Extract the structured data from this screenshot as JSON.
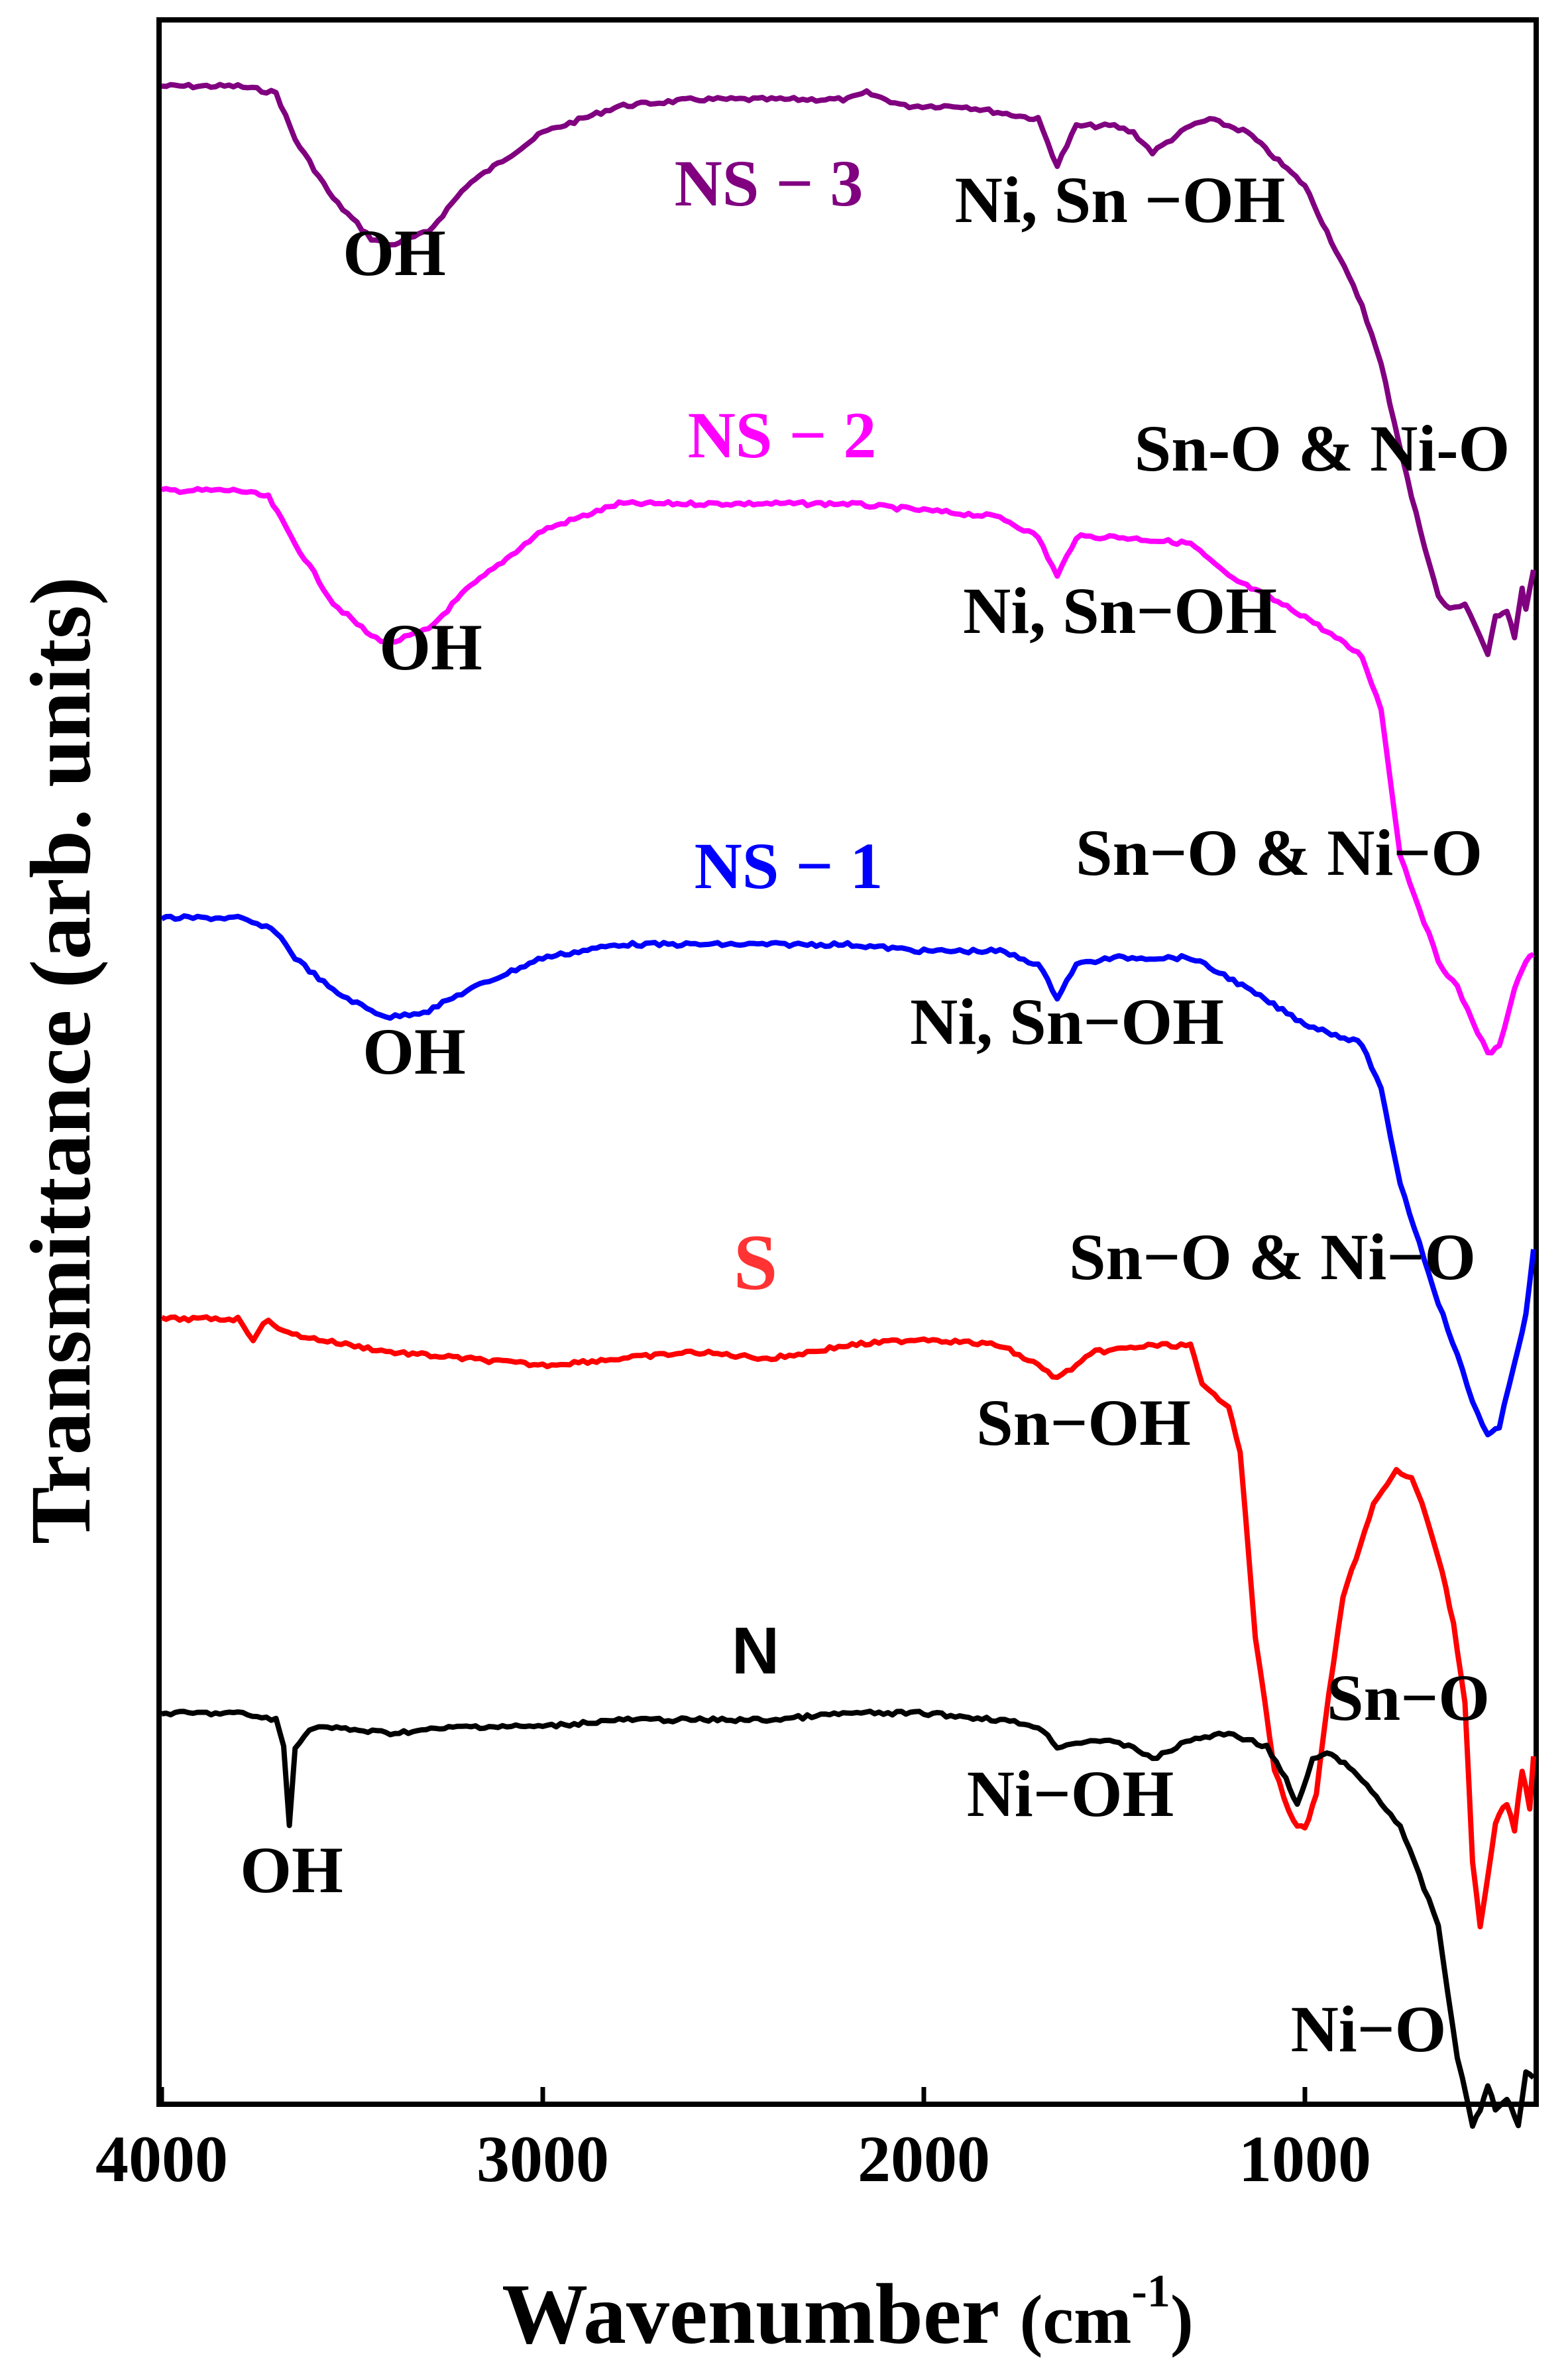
{
  "chart_data": {
    "type": "line",
    "xlabel_main": "Wavenumber ",
    "xlabel_unit_base": "(cm",
    "xlabel_unit_sup": "-1",
    "xlabel_unit_close": ")",
    "ylabel": "Transmittance (arb. units)",
    "xlim": [
      4000,
      400
    ],
    "x_ticks": [
      4000,
      3000,
      2000,
      1000
    ],
    "x_tick_labels": [
      "4000",
      "3000",
      "2000",
      "1000"
    ],
    "y_ticks": false,
    "grid": false,
    "series": [
      {
        "name": "NS − 3",
        "color": "#800080",
        "points": [
          [
            4000,
            0.0
          ],
          [
            3800,
            0.0
          ],
          [
            3700,
            -0.01
          ],
          [
            3650,
            -0.08
          ],
          [
            3550,
            -0.17
          ],
          [
            3450,
            -0.23
          ],
          [
            3400,
            -0.24
          ],
          [
            3300,
            -0.22
          ],
          [
            3200,
            -0.15
          ],
          [
            3000,
            -0.07
          ],
          [
            2800,
            -0.03
          ],
          [
            2600,
            -0.02
          ],
          [
            2400,
            -0.02
          ],
          [
            2200,
            -0.02
          ],
          [
            2150,
            -0.01
          ],
          [
            2050,
            -0.03
          ],
          [
            1900,
            -0.03
          ],
          [
            1700,
            -0.05
          ],
          [
            1650,
            -0.12
          ],
          [
            1600,
            -0.06
          ],
          [
            1500,
            -0.06
          ],
          [
            1450,
            -0.07
          ],
          [
            1400,
            -0.1
          ],
          [
            1300,
            -0.06
          ],
          [
            1250,
            -0.05
          ],
          [
            1150,
            -0.07
          ],
          [
            1000,
            -0.15
          ],
          [
            850,
            -0.33
          ],
          [
            800,
            -0.42
          ],
          [
            720,
            -0.62
          ],
          [
            650,
            -0.77
          ],
          [
            620,
            -0.79
          ],
          [
            580,
            -0.78
          ],
          [
            540,
            -0.83
          ],
          [
            520,
            -0.86
          ],
          [
            500,
            -0.8
          ],
          [
            470,
            -0.79
          ],
          [
            450,
            -0.83
          ],
          [
            430,
            -0.76
          ],
          [
            420,
            -0.79
          ],
          [
            400,
            -0.73
          ]
        ]
      },
      {
        "name": "NS − 2",
        "color": "#ff00ff",
        "points": [
          [
            4000,
            0.0
          ],
          [
            3800,
            0.0
          ],
          [
            3720,
            -0.01
          ],
          [
            3650,
            -0.08
          ],
          [
            3550,
            -0.17
          ],
          [
            3450,
            -0.22
          ],
          [
            3400,
            -0.23
          ],
          [
            3300,
            -0.21
          ],
          [
            3200,
            -0.15
          ],
          [
            3000,
            -0.06
          ],
          [
            2800,
            -0.02
          ],
          [
            2600,
            -0.02
          ],
          [
            2400,
            -0.02
          ],
          [
            2200,
            -0.02
          ],
          [
            2000,
            -0.03
          ],
          [
            1800,
            -0.04
          ],
          [
            1700,
            -0.07
          ],
          [
            1650,
            -0.13
          ],
          [
            1600,
            -0.07
          ],
          [
            1500,
            -0.07
          ],
          [
            1300,
            -0.08
          ],
          [
            1200,
            -0.13
          ],
          [
            1000,
            -0.19
          ],
          [
            850,
            -0.25
          ],
          [
            800,
            -0.33
          ],
          [
            750,
            -0.55
          ],
          [
            650,
            -0.71
          ],
          [
            600,
            -0.75
          ],
          [
            560,
            -0.8
          ],
          [
            520,
            -0.85
          ],
          [
            490,
            -0.84
          ],
          [
            450,
            -0.75
          ],
          [
            420,
            -0.71
          ],
          [
            400,
            -0.7
          ]
        ]
      },
      {
        "name": "NS − 1",
        "color": "#0000ff",
        "points": [
          [
            4000,
            0.0
          ],
          [
            3800,
            0.0
          ],
          [
            3700,
            -0.02
          ],
          [
            3650,
            -0.06
          ],
          [
            3550,
            -0.11
          ],
          [
            3450,
            -0.14
          ],
          [
            3400,
            -0.15
          ],
          [
            3300,
            -0.14
          ],
          [
            3200,
            -0.11
          ],
          [
            3000,
            -0.06
          ],
          [
            2800,
            -0.04
          ],
          [
            2600,
            -0.04
          ],
          [
            2400,
            -0.04
          ],
          [
            2200,
            -0.04
          ],
          [
            2000,
            -0.05
          ],
          [
            1800,
            -0.05
          ],
          [
            1700,
            -0.07
          ],
          [
            1650,
            -0.12
          ],
          [
            1600,
            -0.07
          ],
          [
            1500,
            -0.06
          ],
          [
            1300,
            -0.06
          ],
          [
            1200,
            -0.09
          ],
          [
            1000,
            -0.16
          ],
          [
            850,
            -0.19
          ],
          [
            800,
            -0.26
          ],
          [
            750,
            -0.4
          ],
          [
            650,
            -0.58
          ],
          [
            600,
            -0.66
          ],
          [
            560,
            -0.73
          ],
          [
            520,
            -0.78
          ],
          [
            490,
            -0.77
          ],
          [
            450,
            -0.67
          ],
          [
            420,
            -0.6
          ],
          [
            400,
            -0.5
          ]
        ]
      },
      {
        "name": "S",
        "color": "#ff0000",
        "points": [
          [
            4000,
            0.0
          ],
          [
            3800,
            0.0
          ],
          [
            3760,
            -0.03
          ],
          [
            3720,
            0.0
          ],
          [
            3680,
            -0.02
          ],
          [
            3600,
            -0.03
          ],
          [
            3400,
            -0.05
          ],
          [
            3200,
            -0.06
          ],
          [
            3000,
            -0.07
          ],
          [
            2800,
            -0.06
          ],
          [
            2600,
            -0.05
          ],
          [
            2400,
            -0.06
          ],
          [
            2200,
            -0.04
          ],
          [
            2000,
            -0.03
          ],
          [
            1800,
            -0.04
          ],
          [
            1700,
            -0.07
          ],
          [
            1650,
            -0.09
          ],
          [
            1550,
            -0.05
          ],
          [
            1400,
            -0.04
          ],
          [
            1300,
            -0.04
          ],
          [
            1270,
            -0.1
          ],
          [
            1250,
            -0.11
          ],
          [
            1200,
            -0.13
          ],
          [
            1170,
            -0.2
          ],
          [
            1130,
            -0.48
          ],
          [
            1080,
            -0.68
          ],
          [
            1030,
            -0.76
          ],
          [
            1000,
            -0.77
          ],
          [
            970,
            -0.72
          ],
          [
            950,
            -0.62
          ],
          [
            900,
            -0.42
          ],
          [
            820,
            -0.28
          ],
          [
            760,
            -0.23
          ],
          [
            720,
            -0.24
          ],
          [
            680,
            -0.3
          ],
          [
            640,
            -0.38
          ],
          [
            610,
            -0.46
          ],
          [
            580,
            -0.58
          ],
          [
            560,
            -0.82
          ],
          [
            540,
            -0.92
          ],
          [
            520,
            -0.84
          ],
          [
            500,
            -0.76
          ],
          [
            470,
            -0.73
          ],
          [
            450,
            -0.77
          ],
          [
            430,
            -0.68
          ],
          [
            410,
            -0.74
          ],
          [
            400,
            -0.66
          ]
        ]
      },
      {
        "name": "N",
        "color": "#000000",
        "points": [
          [
            4000,
            0.0
          ],
          [
            3800,
            0.0
          ],
          [
            3700,
            -0.01
          ],
          [
            3680,
            -0.05
          ],
          [
            3665,
            -0.17
          ],
          [
            3650,
            -0.05
          ],
          [
            3600,
            -0.02
          ],
          [
            3400,
            -0.03
          ],
          [
            3200,
            -0.02
          ],
          [
            3000,
            -0.02
          ],
          [
            2800,
            -0.01
          ],
          [
            2600,
            -0.01
          ],
          [
            2400,
            -0.01
          ],
          [
            2200,
            0.0
          ],
          [
            2000,
            0.0
          ],
          [
            1800,
            -0.01
          ],
          [
            1700,
            -0.02
          ],
          [
            1650,
            -0.05
          ],
          [
            1550,
            -0.04
          ],
          [
            1450,
            -0.05
          ],
          [
            1400,
            -0.07
          ],
          [
            1300,
            -0.04
          ],
          [
            1200,
            -0.03
          ],
          [
            1100,
            -0.05
          ],
          [
            1050,
            -0.1
          ],
          [
            1020,
            -0.14
          ],
          [
            980,
            -0.07
          ],
          [
            930,
            -0.06
          ],
          [
            850,
            -0.1
          ],
          [
            750,
            -0.17
          ],
          [
            650,
            -0.32
          ],
          [
            600,
            -0.52
          ],
          [
            560,
            -0.62
          ],
          [
            540,
            -0.6
          ],
          [
            520,
            -0.56
          ],
          [
            500,
            -0.6
          ],
          [
            470,
            -0.58
          ],
          [
            440,
            -0.62
          ],
          [
            420,
            -0.54
          ],
          [
            400,
            -0.55
          ]
        ]
      }
    ],
    "series_labels": [
      {
        "text": "NS − 3",
        "color": "#800080",
        "font": "serif"
      },
      {
        "text": "NS − 2",
        "color": "#ff00ff",
        "font": "serif"
      },
      {
        "text": "NS − 1",
        "color": "#0000ff",
        "font": "serif"
      },
      {
        "text": "S",
        "color": "#ff3333",
        "font": "serif"
      },
      {
        "text": "N",
        "color": "#000000",
        "font": "sans"
      }
    ],
    "annotations": [
      {
        "text": "OH"
      },
      {
        "text": "Ni, Sn −OH"
      },
      {
        "text": "Sn-O & Ni-O"
      },
      {
        "text": "OH"
      },
      {
        "text": "Ni, Sn−OH"
      },
      {
        "text": "Sn−O & Ni−O"
      },
      {
        "text": "OH"
      },
      {
        "text": "Ni, Sn−OH"
      },
      {
        "text": "Sn−O & Ni−O"
      },
      {
        "text": "Sn−OH"
      },
      {
        "text": "Sn−O"
      },
      {
        "text": "OH"
      },
      {
        "text": "Ni−OH"
      },
      {
        "text": "Ni−O"
      }
    ]
  }
}
